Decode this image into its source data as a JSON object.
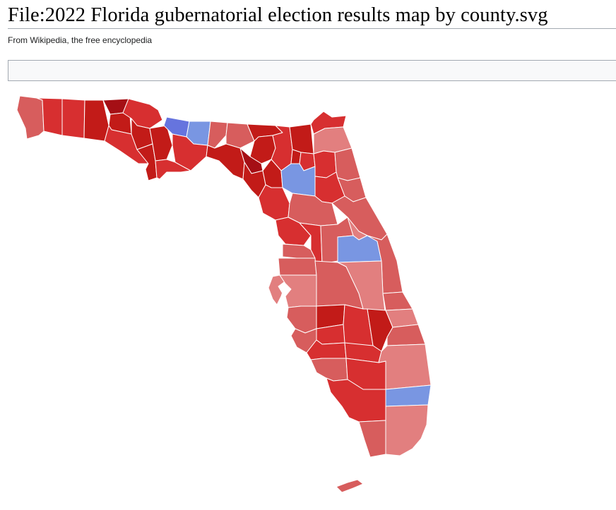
{
  "page": {
    "title": "File:2022 Florida gubernatorial election results map by county.svg",
    "tagline": "From Wikipedia, the free encyclopedia"
  },
  "map": {
    "colors": {
      "r90": "#a50f15",
      "r80": "#c21b18",
      "r70": "#d72f30",
      "r60": "#d75d5d",
      "r50": "#e27f7f",
      "d50": "#7996e2",
      "d60": "#6674de"
    },
    "counties": [
      {
        "name": "Escambia",
        "fill": "r60"
      },
      {
        "name": "Santa Rosa",
        "fill": "r70"
      },
      {
        "name": "Okaloosa",
        "fill": "r70"
      },
      {
        "name": "Walton",
        "fill": "r80"
      },
      {
        "name": "Holmes",
        "fill": "r90"
      },
      {
        "name": "Washington",
        "fill": "r80"
      },
      {
        "name": "Jackson",
        "fill": "r70"
      },
      {
        "name": "Bay",
        "fill": "r70"
      },
      {
        "name": "Calhoun",
        "fill": "r80"
      },
      {
        "name": "Gulf",
        "fill": "r80"
      },
      {
        "name": "Liberty",
        "fill": "r80"
      },
      {
        "name": "Franklin",
        "fill": "r70"
      },
      {
        "name": "Gadsden",
        "fill": "d60"
      },
      {
        "name": "Leon",
        "fill": "d50"
      },
      {
        "name": "Wakulla",
        "fill": "r70"
      },
      {
        "name": "Jefferson",
        "fill": "r60"
      },
      {
        "name": "Madison",
        "fill": "r60"
      },
      {
        "name": "Taylor",
        "fill": "r80"
      },
      {
        "name": "Hamilton",
        "fill": "r80"
      },
      {
        "name": "Suwannee",
        "fill": "r80"
      },
      {
        "name": "Lafayette",
        "fill": "r90"
      },
      {
        "name": "Dixie",
        "fill": "r80"
      },
      {
        "name": "Columbia",
        "fill": "r70"
      },
      {
        "name": "Gilchrist",
        "fill": "r80"
      },
      {
        "name": "Levy",
        "fill": "r70"
      },
      {
        "name": "Baker",
        "fill": "r80"
      },
      {
        "name": "Union",
        "fill": "r80"
      },
      {
        "name": "Bradford",
        "fill": "r70"
      },
      {
        "name": "Alachua",
        "fill": "d50"
      },
      {
        "name": "Nassau",
        "fill": "r70"
      },
      {
        "name": "Duval",
        "fill": "r50"
      },
      {
        "name": "Clay",
        "fill": "r70"
      },
      {
        "name": "St. Johns",
        "fill": "r60"
      },
      {
        "name": "Putnam",
        "fill": "r70"
      },
      {
        "name": "Flagler",
        "fill": "r60"
      },
      {
        "name": "Marion",
        "fill": "r60"
      },
      {
        "name": "Volusia",
        "fill": "r60"
      },
      {
        "name": "Citrus",
        "fill": "r70"
      },
      {
        "name": "Sumter",
        "fill": "r70"
      },
      {
        "name": "Lake",
        "fill": "r60"
      },
      {
        "name": "Seminole",
        "fill": "r50"
      },
      {
        "name": "Hernando",
        "fill": "r60"
      },
      {
        "name": "Orange",
        "fill": "d50"
      },
      {
        "name": "Brevard",
        "fill": "r60"
      },
      {
        "name": "Pasco",
        "fill": "r60"
      },
      {
        "name": "Pinellas",
        "fill": "r50"
      },
      {
        "name": "Hillsborough",
        "fill": "r50"
      },
      {
        "name": "Polk",
        "fill": "r60"
      },
      {
        "name": "Osceola",
        "fill": "r50"
      },
      {
        "name": "Indian River",
        "fill": "r60"
      },
      {
        "name": "Manatee",
        "fill": "r60"
      },
      {
        "name": "Hardee",
        "fill": "r80"
      },
      {
        "name": "Highlands",
        "fill": "r70"
      },
      {
        "name": "Okeechobee",
        "fill": "r80"
      },
      {
        "name": "St. Lucie",
        "fill": "r50"
      },
      {
        "name": "Sarasota",
        "fill": "r60"
      },
      {
        "name": "DeSoto",
        "fill": "r70"
      },
      {
        "name": "Martin",
        "fill": "r60"
      },
      {
        "name": "Charlotte",
        "fill": "r70"
      },
      {
        "name": "Glades",
        "fill": "r70"
      },
      {
        "name": "Lee",
        "fill": "r60"
      },
      {
        "name": "Hendry",
        "fill": "r70"
      },
      {
        "name": "Palm Beach",
        "fill": "r50"
      },
      {
        "name": "Collier",
        "fill": "r70"
      },
      {
        "name": "Broward",
        "fill": "d50"
      },
      {
        "name": "Monroe",
        "fill": "r60"
      },
      {
        "name": "Miami-Dade",
        "fill": "r50"
      }
    ]
  }
}
